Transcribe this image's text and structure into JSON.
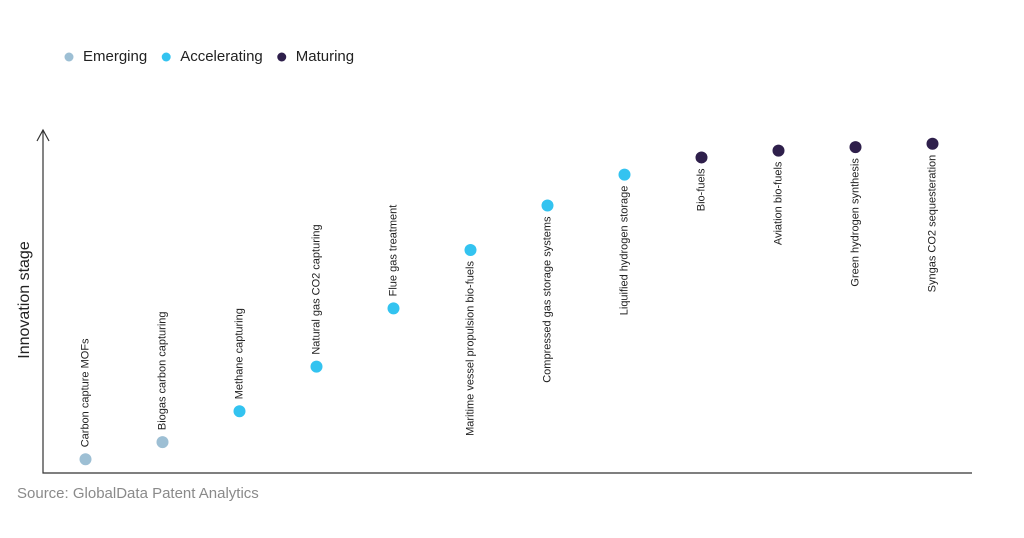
{
  "chart_data": {
    "type": "scatter",
    "y_label": "Innovation stage",
    "source": "Source: GlobalData Patent Analytics",
    "categories": [
      "Carbon capture MOFs",
      "Biogas carbon capturing",
      "Methane capturing",
      "Natural gas CO2 capturing",
      "Flue gas treatment",
      "Maritime vessel propulsion bio-fuels",
      "Compressed gas storage systems",
      "Liquified hydrogen storage",
      "Bio-fuels",
      "Aviation bio-fuels",
      "Green hydrogen synthesis",
      "Syngas CO2 sequesteration"
    ],
    "series": [
      {
        "name": "Emerging",
        "color": "#9dbfd4",
        "values": [
          4,
          9,
          null,
          null,
          null,
          null,
          null,
          null,
          null,
          null,
          null,
          null
        ]
      },
      {
        "name": "Accelerating",
        "color": "#33c3f0",
        "values": [
          null,
          null,
          18,
          31,
          48,
          65,
          78,
          87,
          null,
          null,
          null,
          null
        ]
      },
      {
        "name": "Maturing",
        "color": "#2e1f4b",
        "values": [
          null,
          null,
          null,
          null,
          null,
          null,
          null,
          null,
          92,
          94,
          95,
          96
        ]
      }
    ],
    "ylim": [
      0,
      100
    ]
  }
}
